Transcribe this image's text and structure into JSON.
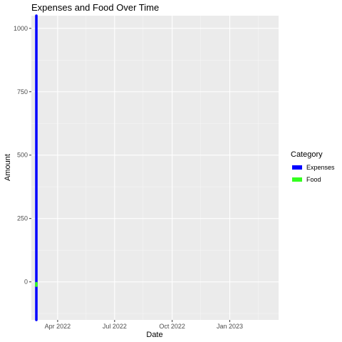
{
  "chart_data": {
    "type": "line",
    "title": "Expenses and Food Over Time",
    "xlabel": "Date",
    "ylabel": "Amount",
    "x_ticks": [
      "Apr 2022",
      "Jul 2022",
      "Oct 2022",
      "Jan 2023"
    ],
    "y_ticks": [
      0,
      250,
      500,
      750,
      1000
    ],
    "ylim": [
      -150,
      1050
    ],
    "xlim": [
      "2022-02-18",
      "2023-03-20"
    ],
    "grid": true,
    "legend": {
      "title": "Category",
      "position": "right"
    },
    "series": [
      {
        "name": "Expenses",
        "color": "#0000ff",
        "points": [
          {
            "x": "2022-02-26",
            "y": -150
          },
          {
            "x": "2022-02-26",
            "y": 1050
          }
        ]
      },
      {
        "name": "Food",
        "color": "#33ff1f",
        "points": [
          {
            "x": "2022-02-26",
            "y": -15
          },
          {
            "x": "2022-02-26",
            "y": -5
          }
        ]
      }
    ]
  }
}
